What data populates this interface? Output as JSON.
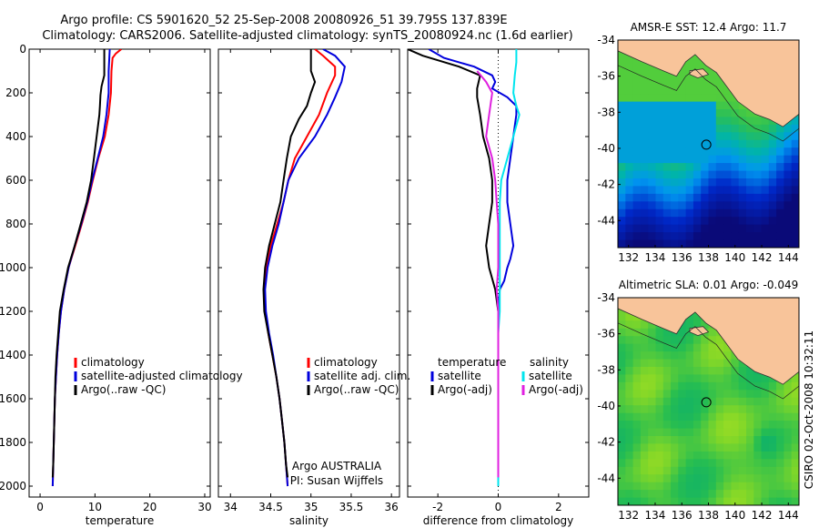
{
  "figure": {
    "title_line1": "Argo profile: CS 5901620_52 25-Sep-2008 20080926_51 39.795S 137.839E",
    "title_line2": "Climatology: CARS2006. Satellite-adjusted climatology: synTS_20080924.nc (1.6d earlier)",
    "credit": "CSIRO 02-Oct-2008 10:32:11"
  },
  "colors": {
    "climatology": "#ff0000",
    "satellite": "#0000dd",
    "argo": "#000000",
    "satellite_salinity": "#00e5ee",
    "argo_salinity_adj": "#e020e0",
    "land": "#f8c49a",
    "coast": "#333333"
  },
  "chart_data": [
    {
      "id": "temperature",
      "type": "line",
      "xlabel": "temperature",
      "xlim": [
        -2,
        31
      ],
      "ylim": [
        0,
        2050
      ],
      "y_reversed": true,
      "xticks": [
        0,
        10,
        20,
        30
      ],
      "yticks": [
        0,
        200,
        400,
        600,
        800,
        1000,
        1200,
        1400,
        1600,
        1800,
        2000
      ],
      "legend": [
        "climatology",
        "satellite-adjusted climatology",
        "Argo(..raw -QC)"
      ],
      "legend_position": "lower-center",
      "series": [
        {
          "name": "climatology",
          "color": "#ff0000",
          "points": [
            [
              14.8,
              0
            ],
            [
              13.8,
              20
            ],
            [
              13.2,
              40
            ],
            [
              13.0,
              100
            ],
            [
              12.9,
              200
            ],
            [
              12.5,
              300
            ],
            [
              11.8,
              400
            ],
            [
              10.6,
              500
            ],
            [
              9.6,
              600
            ],
            [
              8.7,
              700
            ],
            [
              7.6,
              800
            ],
            [
              6.4,
              900
            ],
            [
              5.2,
              1000
            ],
            [
              4.4,
              1100
            ],
            [
              3.8,
              1200
            ],
            [
              3.4,
              1300
            ],
            [
              3.1,
              1400
            ],
            [
              2.9,
              1500
            ],
            [
              2.7,
              1600
            ],
            [
              2.6,
              1700
            ],
            [
              2.5,
              1800
            ],
            [
              2.4,
              1900
            ],
            [
              2.3,
              2000
            ]
          ]
        },
        {
          "name": "satellite-adjusted climatology",
          "color": "#0000dd",
          "points": [
            [
              12.7,
              0
            ],
            [
              12.6,
              50
            ],
            [
              12.5,
              100
            ],
            [
              12.5,
              200
            ],
            [
              12.1,
              300
            ],
            [
              11.5,
              400
            ],
            [
              10.5,
              500
            ],
            [
              9.5,
              600
            ],
            [
              8.6,
              700
            ],
            [
              7.5,
              800
            ],
            [
              6.3,
              900
            ],
            [
              5.2,
              1000
            ],
            [
              4.4,
              1100
            ],
            [
              3.8,
              1200
            ],
            [
              3.4,
              1300
            ],
            [
              3.1,
              1400
            ],
            [
              2.9,
              1500
            ],
            [
              2.7,
              1600
            ],
            [
              2.6,
              1700
            ],
            [
              2.5,
              1800
            ],
            [
              2.4,
              1900
            ],
            [
              2.3,
              2000
            ]
          ]
        },
        {
          "name": "Argo(..raw -QC)",
          "color": "#000000",
          "points": [
            [
              11.7,
              0
            ],
            [
              11.7,
              120
            ],
            [
              11.2,
              170
            ],
            [
              11.0,
              210
            ],
            [
              10.9,
              260
            ],
            [
              10.8,
              300
            ],
            [
              10.3,
              400
            ],
            [
              9.8,
              500
            ],
            [
              9.3,
              600
            ],
            [
              8.5,
              700
            ],
            [
              7.4,
              800
            ],
            [
              6.3,
              900
            ],
            [
              5.1,
              1000
            ],
            [
              4.3,
              1100
            ],
            [
              3.6,
              1200
            ],
            [
              3.3,
              1300
            ],
            [
              3.0,
              1400
            ],
            [
              2.8,
              1500
            ],
            [
              2.7,
              1600
            ],
            [
              2.6,
              1700
            ],
            [
              2.5,
              1800
            ],
            [
              2.4,
              1900
            ],
            [
              2.3,
              1960
            ]
          ]
        }
      ]
    },
    {
      "id": "salinity",
      "type": "line",
      "xlabel": "salinity",
      "xlim": [
        33.85,
        36.1
      ],
      "ylim": [
        0,
        2050
      ],
      "y_reversed": true,
      "xticks": [
        34,
        34.5,
        35,
        35.5,
        36
      ],
      "legend": [
        "climatology",
        "satellite adj. clim.",
        "Argo(..raw -QC)"
      ],
      "legend_position": "lower-right",
      "series": [
        {
          "name": "climatology",
          "color": "#ff0000",
          "points": [
            [
              35.05,
              0
            ],
            [
              35.15,
              30
            ],
            [
              35.3,
              80
            ],
            [
              35.3,
              120
            ],
            [
              35.2,
              200
            ],
            [
              35.1,
              300
            ],
            [
              34.95,
              400
            ],
            [
              34.8,
              500
            ],
            [
              34.72,
              600
            ],
            [
              34.66,
              700
            ],
            [
              34.58,
              800
            ],
            [
              34.5,
              900
            ],
            [
              34.45,
              1000
            ],
            [
              34.42,
              1100
            ],
            [
              34.43,
              1200
            ],
            [
              34.47,
              1300
            ],
            [
              34.52,
              1400
            ],
            [
              34.57,
              1500
            ],
            [
              34.61,
              1600
            ],
            [
              34.64,
              1700
            ],
            [
              34.67,
              1800
            ],
            [
              34.69,
              1900
            ],
            [
              34.71,
              2000
            ]
          ]
        },
        {
          "name": "satellite adj. clim.",
          "color": "#0000dd",
          "points": [
            [
              35.15,
              0
            ],
            [
              35.3,
              30
            ],
            [
              35.42,
              80
            ],
            [
              35.38,
              150
            ],
            [
              35.3,
              220
            ],
            [
              35.2,
              300
            ],
            [
              35.05,
              400
            ],
            [
              34.85,
              500
            ],
            [
              34.72,
              600
            ],
            [
              34.66,
              700
            ],
            [
              34.6,
              800
            ],
            [
              34.52,
              900
            ],
            [
              34.46,
              1000
            ],
            [
              34.43,
              1100
            ],
            [
              34.44,
              1200
            ],
            [
              34.48,
              1300
            ],
            [
              34.53,
              1400
            ],
            [
              34.57,
              1500
            ],
            [
              34.61,
              1600
            ],
            [
              34.64,
              1700
            ],
            [
              34.67,
              1800
            ],
            [
              34.69,
              1900
            ],
            [
              34.71,
              2000
            ]
          ]
        },
        {
          "name": "Argo(..raw -QC)",
          "color": "#000000",
          "points": [
            [
              35.0,
              0
            ],
            [
              35.0,
              100
            ],
            [
              35.05,
              150
            ],
            [
              35.0,
              200
            ],
            [
              34.95,
              260
            ],
            [
              34.85,
              320
            ],
            [
              34.75,
              400
            ],
            [
              34.7,
              500
            ],
            [
              34.66,
              600
            ],
            [
              34.62,
              700
            ],
            [
              34.55,
              800
            ],
            [
              34.48,
              900
            ],
            [
              34.43,
              1000
            ],
            [
              34.41,
              1100
            ],
            [
              34.42,
              1200
            ],
            [
              34.47,
              1300
            ],
            [
              34.52,
              1400
            ],
            [
              34.57,
              1500
            ],
            [
              34.61,
              1600
            ],
            [
              34.64,
              1700
            ],
            [
              34.67,
              1800
            ],
            [
              34.69,
              1900
            ],
            [
              34.71,
              1960
            ]
          ]
        }
      ],
      "annotations": [
        "Argo AUSTRALIA",
        "PI: Susan Wijffels"
      ]
    },
    {
      "id": "difference",
      "type": "line",
      "xlabel": "difference from climatology",
      "xlim": [
        -3,
        3
      ],
      "ylim": [
        0,
        2050
      ],
      "y_reversed": true,
      "xticks": [
        -2,
        0,
        2
      ],
      "zero_line": "dotted",
      "legend_left": {
        "heading": "temperature",
        "entries": [
          "satellite",
          "Argo(-adj)"
        ]
      },
      "legend_right": {
        "heading": "salinity",
        "entries": [
          "satellite",
          "Argo(-adj)"
        ]
      },
      "series": [
        {
          "name": "temperature satellite",
          "color": "#0000dd",
          "points": [
            [
              -2.3,
              0
            ],
            [
              -1.8,
              40
            ],
            [
              -0.8,
              80
            ],
            [
              -0.2,
              120
            ],
            [
              -0.1,
              150
            ],
            [
              -0.2,
              180
            ],
            [
              0.3,
              220
            ],
            [
              0.6,
              260
            ],
            [
              0.6,
              300
            ],
            [
              0.5,
              400
            ],
            [
              0.4,
              500
            ],
            [
              0.3,
              600
            ],
            [
              0.3,
              700
            ],
            [
              0.4,
              800
            ],
            [
              0.5,
              900
            ],
            [
              0.4,
              960
            ],
            [
              0.3,
              1000
            ],
            [
              0.2,
              1060
            ],
            [
              0.05,
              1100
            ],
            [
              0.0,
              1200
            ],
            [
              0.0,
              2000
            ]
          ]
        },
        {
          "name": "temperature Argo(-adj)",
          "color": "#000000",
          "points": [
            [
              -3.0,
              0
            ],
            [
              -2.5,
              30
            ],
            [
              -1.3,
              80
            ],
            [
              -0.6,
              120
            ],
            [
              -0.7,
              180
            ],
            [
              -0.7,
              220
            ],
            [
              -0.6,
              300
            ],
            [
              -0.5,
              400
            ],
            [
              -0.3,
              500
            ],
            [
              -0.2,
              600
            ],
            [
              -0.2,
              700
            ],
            [
              -0.3,
              800
            ],
            [
              -0.4,
              900
            ],
            [
              -0.3,
              1000
            ],
            [
              -0.1,
              1100
            ],
            [
              0.0,
              1200
            ],
            [
              0.0,
              1960
            ]
          ]
        },
        {
          "name": "salinity satellite",
          "color": "#00e5ee",
          "points": [
            [
              0.6,
              0
            ],
            [
              0.6,
              60
            ],
            [
              0.55,
              120
            ],
            [
              0.5,
              200
            ],
            [
              0.6,
              260
            ],
            [
              0.7,
              300
            ],
            [
              0.5,
              400
            ],
            [
              0.3,
              500
            ],
            [
              0.1,
              600
            ],
            [
              0.05,
              700
            ],
            [
              0.05,
              800
            ],
            [
              0.05,
              900
            ],
            [
              0.05,
              1000
            ],
            [
              0.05,
              1100
            ],
            [
              0.05,
              1200
            ],
            [
              0.0,
              1300
            ],
            [
              0.0,
              2000
            ]
          ]
        },
        {
          "name": "salinity Argo(-adj)",
          "color": "#e020e0",
          "points": [
            [
              -0.7,
              100
            ],
            [
              -0.4,
              150
            ],
            [
              -0.2,
              200
            ],
            [
              -0.3,
              300
            ],
            [
              -0.4,
              400
            ],
            [
              -0.2,
              500
            ],
            [
              -0.1,
              600
            ],
            [
              -0.05,
              700
            ],
            [
              0.0,
              800
            ],
            [
              0.0,
              900
            ],
            [
              0.0,
              1000
            ],
            [
              -0.05,
              1100
            ],
            [
              0.0,
              1200
            ],
            [
              0.0,
              1300
            ],
            [
              0.0,
              1960
            ]
          ]
        }
      ]
    },
    {
      "id": "amsre-sst-map",
      "type": "heatmap",
      "title": "AMSR-E SST: 12.4  Argo: 11.7",
      "xticks": [
        132,
        134,
        136,
        138,
        140,
        142,
        144
      ],
      "yticks": [
        -34,
        -36,
        -38,
        -40,
        -42,
        -44
      ],
      "xlim": [
        131.2,
        144.8
      ],
      "ylim": [
        -45.5,
        -34
      ],
      "marker": {
        "lon": 137.839,
        "lat": -39.795
      }
    },
    {
      "id": "altimetric-sla-map",
      "type": "heatmap",
      "title": "Altimetric SLA: 0.01  Argo: -0.049",
      "xticks": [
        132,
        134,
        136,
        138,
        140,
        142,
        144
      ],
      "yticks": [
        -34,
        -36,
        -38,
        -40,
        -42,
        -44
      ],
      "xlim": [
        131.2,
        144.8
      ],
      "ylim": [
        -45.5,
        -34
      ],
      "marker": {
        "lon": 137.839,
        "lat": -39.795
      }
    }
  ]
}
